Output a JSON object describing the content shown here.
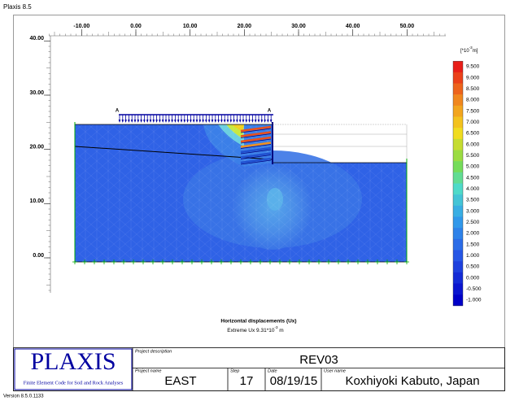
{
  "app_title": "Plaxis 8.5",
  "plot": {
    "x_ticks": [
      {
        "value": -10,
        "label": "-10.00"
      },
      {
        "value": 0,
        "label": "0.00"
      },
      {
        "value": 10,
        "label": "10.00"
      },
      {
        "value": 20,
        "label": "20.00"
      },
      {
        "value": 30,
        "label": "30.00"
      },
      {
        "value": 40,
        "label": "40.00"
      },
      {
        "value": 50,
        "label": "50.00"
      }
    ],
    "y_ticks": [
      {
        "value": 40,
        "label": "40.00"
      },
      {
        "value": 30,
        "label": "30.00"
      },
      {
        "value": 20,
        "label": "20.00"
      },
      {
        "value": 10,
        "label": "10.00"
      },
      {
        "value": 0,
        "label": "0.00"
      }
    ],
    "anchor_left": "A",
    "anchor_right": "A",
    "caption": "Horizontal displacements (Ux)",
    "extreme": {
      "text": "Extreme Ux 9.31*10",
      "exp": "-3",
      "unit": " m"
    }
  },
  "legend": {
    "unit": {
      "base": "[*10",
      "exp": "-3",
      "tail": "m]"
    },
    "levels": [
      "9.500",
      "9.000",
      "8.500",
      "8.000",
      "7.500",
      "7.000",
      "6.500",
      "6.000",
      "5.500",
      "5.000",
      "4.500",
      "4.000",
      "3.500",
      "3.000",
      "2.500",
      "2.000",
      "1.500",
      "1.000",
      "0.500",
      "0.000",
      "-0.500",
      "-1.000"
    ]
  },
  "title_block": {
    "logo": "PLAXIS",
    "logo_subtitle": "Finite Element Code for Soil and Rock Analyses",
    "project_description_label": "Project description",
    "project_description": "REV03",
    "project_name_label": "Project name",
    "project_name": "EAST",
    "step_label": "Step",
    "step": "17",
    "date_label": "Date",
    "date": "08/19/15",
    "user_name_label": "User name",
    "user_name": "Koxhiyoki Kabuto, Japan"
  },
  "version": "Version 8.5.0.1133"
}
